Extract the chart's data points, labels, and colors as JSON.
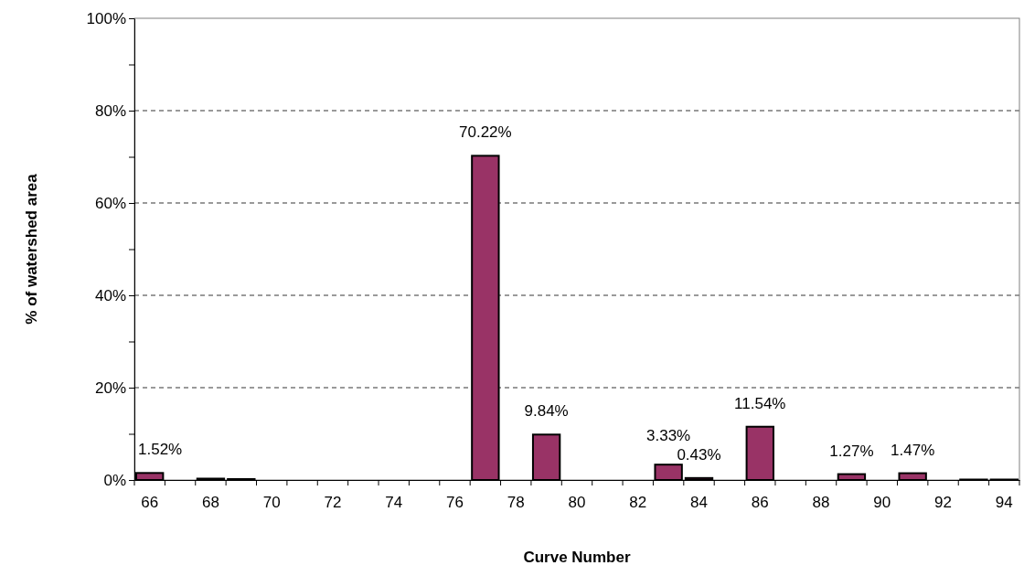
{
  "chart_data": {
    "type": "bar",
    "xlabel": "Curve Number",
    "ylabel": "% of watershed area",
    "categories": [
      "66",
      null,
      "68",
      null,
      "70",
      null,
      "72",
      null,
      "74",
      null,
      "76",
      null,
      "78",
      null,
      "80",
      null,
      "82",
      null,
      "84",
      null,
      "86",
      null,
      "88",
      null,
      "90",
      null,
      "92",
      null,
      "94"
    ],
    "values": [
      1.52,
      0,
      0.3,
      0.2,
      0,
      0,
      0,
      0,
      0,
      0,
      0,
      70.22,
      0,
      9.84,
      0,
      0,
      0,
      3.33,
      0.43,
      0,
      11.54,
      0,
      0,
      1.27,
      0,
      1.47,
      0,
      0.1,
      0.1
    ],
    "value_labels": [
      "1.52%",
      null,
      null,
      null,
      null,
      null,
      null,
      null,
      null,
      null,
      null,
      "70.22%",
      null,
      "9.84%",
      null,
      null,
      null,
      "3.33%",
      "0.43%",
      null,
      "11.54%",
      null,
      null,
      "1.27%",
      null,
      "1.47%",
      null,
      null,
      null
    ],
    "color": "#993366",
    "ylim": [
      0,
      100
    ],
    "yticks": [
      {
        "value": 0,
        "label": "0%"
      },
      {
        "value": 10,
        "label": null
      },
      {
        "value": 20,
        "label": "20%"
      },
      {
        "value": 30,
        "label": null
      },
      {
        "value": 40,
        "label": "40%"
      },
      {
        "value": 50,
        "label": null
      },
      {
        "value": 60,
        "label": "60%"
      },
      {
        "value": 70,
        "label": null
      },
      {
        "value": 80,
        "label": "80%"
      },
      {
        "value": 90,
        "label": null
      },
      {
        "value": 100,
        "label": "100%"
      }
    ],
    "grid": "y"
  }
}
